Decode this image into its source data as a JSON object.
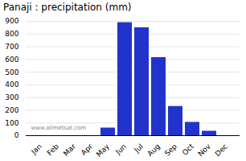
{
  "chart_data": {
    "type": "bar",
    "title": "Panaji : precipitation (mm)",
    "categories": [
      "Jan",
      "Feb",
      "Mar",
      "Apr",
      "May",
      "Jun",
      "Jul",
      "Aug",
      "Sep",
      "Oct",
      "Nov",
      "Dec"
    ],
    "values": [
      0,
      0,
      0,
      0,
      60,
      890,
      850,
      615,
      230,
      105,
      35,
      0
    ],
    "color": "#2233CC",
    "ylim": [
      0,
      900
    ],
    "yticks": [
      0,
      100,
      200,
      300,
      400,
      500,
      600,
      700,
      800,
      900
    ],
    "grid": true,
    "annotations": [
      "www.allmetsat.com"
    ]
  }
}
